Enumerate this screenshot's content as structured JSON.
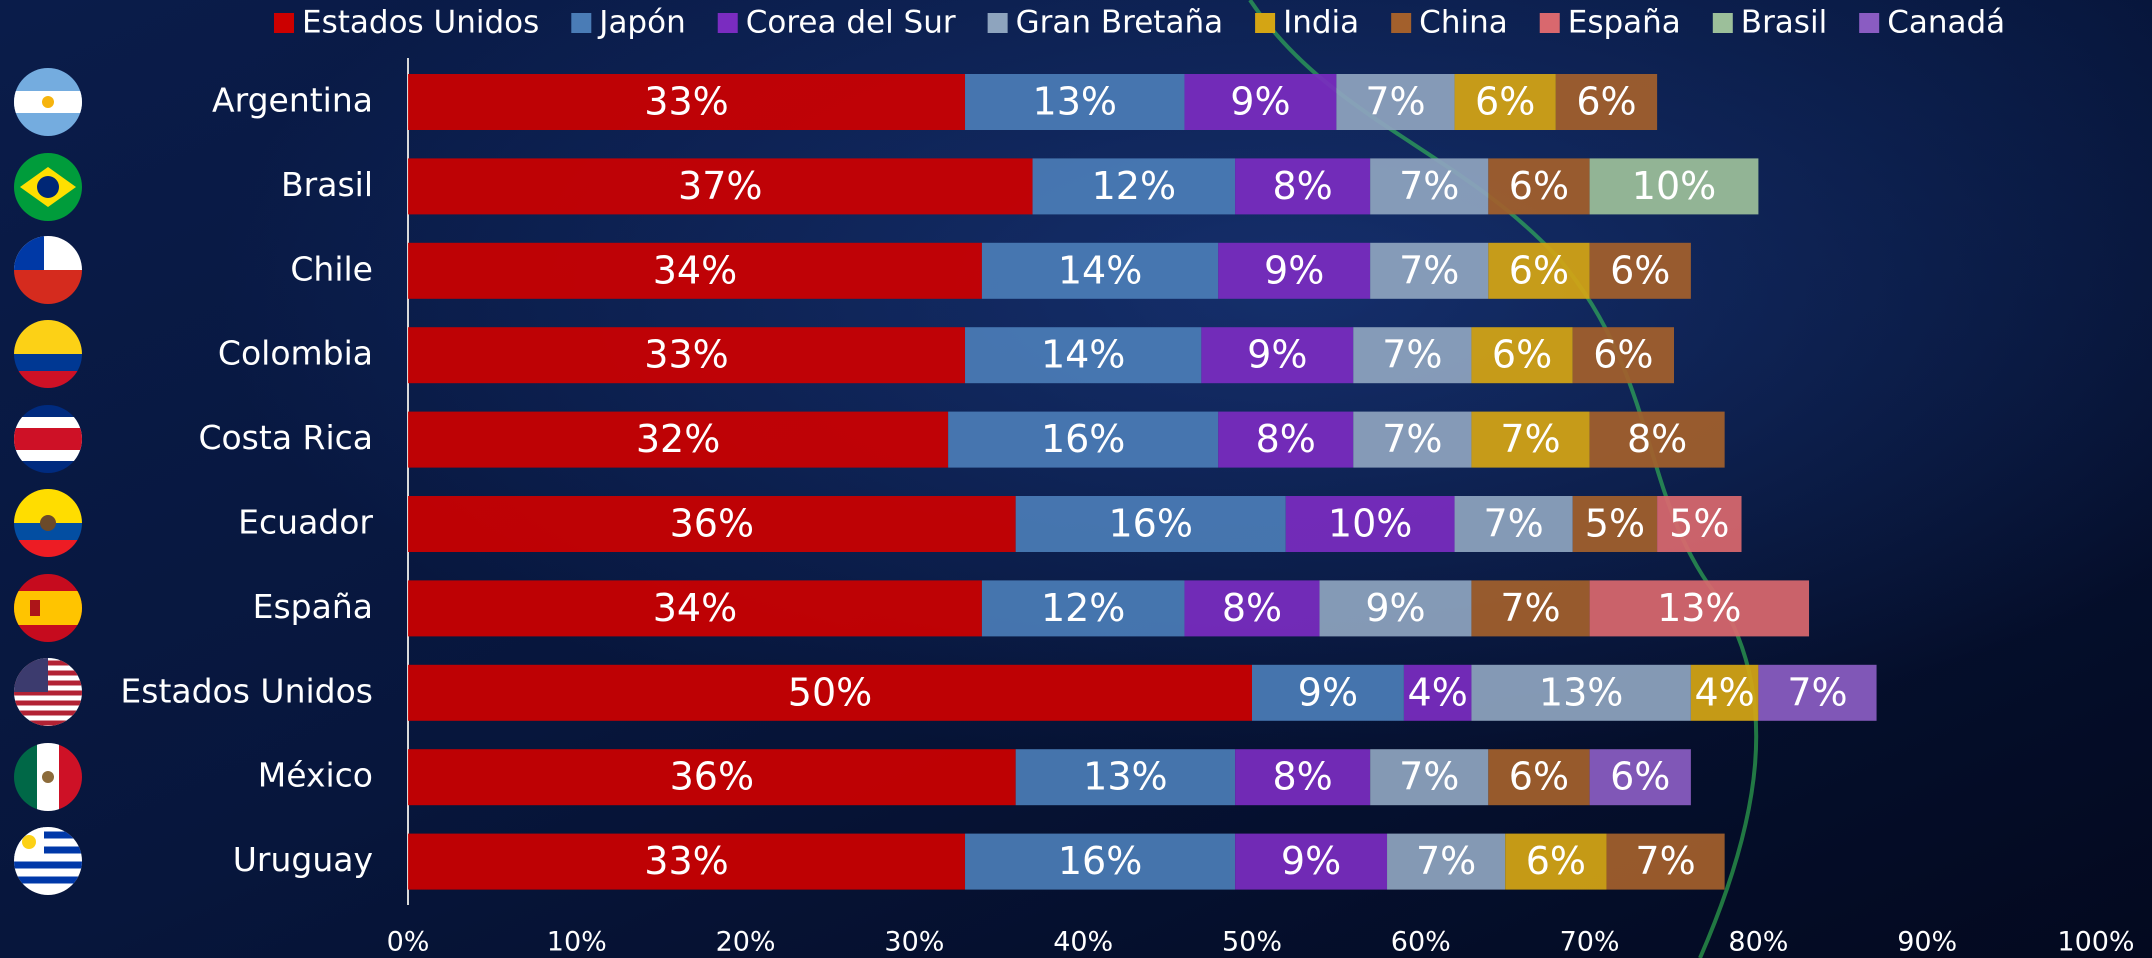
{
  "chart_data": {
    "type": "stacked-bar-horizontal",
    "categories": [
      "Argentina",
      "Brasil",
      "Chile",
      "Colombia",
      "Costa Rica",
      "Ecuador",
      "España",
      "Estados Unidos",
      "México",
      "Uruguay"
    ],
    "series": [
      {
        "name": "Estados Unidos",
        "color": "#cc0000",
        "values": [
          33,
          37,
          34,
          33,
          32,
          36,
          34,
          50,
          36,
          33
        ],
        "value_labels": [
          "33%",
          "37%",
          "34%",
          "33%",
          "32%",
          "36%",
          "34%",
          "50%",
          "36%",
          "33%"
        ]
      },
      {
        "name": "Japón",
        "color": "#4a7cb6",
        "values": [
          13,
          12,
          14,
          14,
          16,
          16,
          12,
          9,
          13,
          16
        ],
        "value_labels": [
          "13%",
          "12%",
          "14%",
          "14%",
          "16%",
          "16%",
          "12%",
          "9%",
          "13%",
          "16%"
        ]
      },
      {
        "name": "Corea del Sur",
        "color": "#7a2cc0",
        "values": [
          9,
          8,
          9,
          9,
          8,
          10,
          8,
          4,
          8,
          9
        ],
        "value_labels": [
          "9%",
          "8%",
          "9%",
          "9%",
          "8%",
          "10%",
          "8%",
          "4%",
          "8%",
          "9%"
        ]
      },
      {
        "name": "Gran Bretaña",
        "color": "#8ea4be",
        "values": [
          7,
          7,
          7,
          7,
          7,
          7,
          9,
          13,
          7,
          7
        ],
        "value_labels": [
          "7%",
          "7%",
          "7%",
          "7%",
          "7%",
          "7%",
          "9%",
          "13%",
          "7%",
          "7%"
        ]
      },
      {
        "name": "India",
        "color": "#d4a514",
        "values": [
          6,
          null,
          6,
          6,
          7,
          null,
          null,
          4,
          null,
          6
        ],
        "value_labels": [
          "6%",
          null,
          "6%",
          "6%",
          "7%",
          null,
          null,
          "4%",
          null,
          "6%"
        ]
      },
      {
        "name": "China",
        "color": "#a3602c",
        "values": [
          6,
          6,
          6,
          6,
          8,
          5,
          7,
          null,
          6,
          7
        ],
        "value_labels": [
          "6%",
          "6%",
          "6%",
          "6%",
          "8%",
          "5%",
          "7%",
          null,
          "6%",
          "7%"
        ]
      },
      {
        "name": "España",
        "color": "#d9686e",
        "values": [
          null,
          null,
          null,
          null,
          null,
          5,
          13,
          null,
          null,
          null
        ],
        "value_labels": [
          null,
          null,
          null,
          null,
          null,
          "5%",
          "13%",
          null,
          null,
          null
        ]
      },
      {
        "name": "Brasil",
        "color": "#9cbf9a",
        "values": [
          null,
          10,
          null,
          null,
          null,
          null,
          null,
          null,
          null,
          null
        ],
        "value_labels": [
          null,
          "10%",
          null,
          null,
          null,
          null,
          null,
          null,
          null,
          null
        ]
      },
      {
        "name": "Canadá",
        "color": "#8a5cc2",
        "values": [
          null,
          null,
          null,
          null,
          null,
          null,
          null,
          7,
          6,
          null
        ],
        "value_labels": [
          null,
          null,
          null,
          null,
          null,
          null,
          null,
          "7%",
          "6%",
          null
        ]
      }
    ],
    "xlim": [
      0,
      100
    ],
    "xticks": [
      {
        "value": 0,
        "label": "0%"
      },
      {
        "value": 10,
        "label": "10%"
      },
      {
        "value": 20,
        "label": "20%"
      },
      {
        "value": 30,
        "label": "30%"
      },
      {
        "value": 40,
        "label": "40%"
      },
      {
        "value": 50,
        "label": "50%"
      },
      {
        "value": 60,
        "label": "60%"
      },
      {
        "value": 70,
        "label": "70%"
      },
      {
        "value": 80,
        "label": "80%"
      },
      {
        "value": 90,
        "label": "90%"
      },
      {
        "value": 100,
        "label": "100%"
      }
    ],
    "legend": "top"
  }
}
